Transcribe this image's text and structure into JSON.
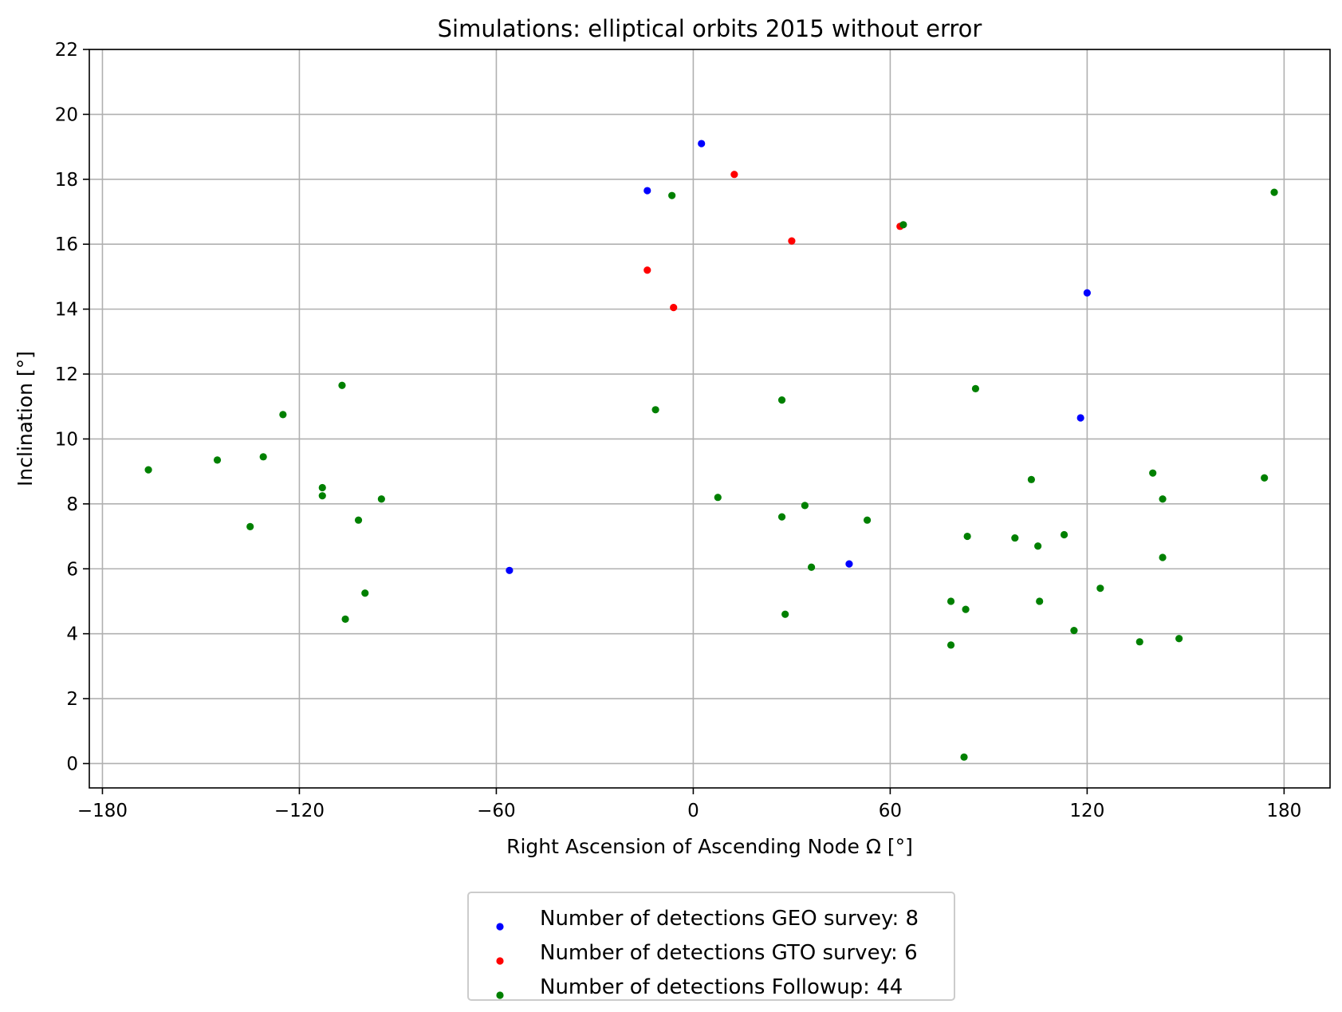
{
  "chart_data": {
    "type": "scatter",
    "title": "Simulations: elliptical orbits 2015 without error",
    "xlabel": "Right Ascension of Ascending Node Ω [°]",
    "ylabel": "Inclination [°]",
    "xlim": [
      -184,
      194
    ],
    "ylim": [
      -0.75,
      22
    ],
    "xticks": [
      -180,
      -120,
      -60,
      0,
      60,
      120,
      180
    ],
    "xtick_labels": [
      "−180",
      "−120",
      "−60",
      "0",
      "60",
      "120",
      "180"
    ],
    "yticks": [
      0,
      2,
      4,
      6,
      8,
      10,
      12,
      14,
      16,
      18,
      20,
      22
    ],
    "ytick_labels": [
      "0",
      "2",
      "4",
      "6",
      "8",
      "10",
      "12",
      "14",
      "16",
      "18",
      "20",
      "22"
    ],
    "grid": true,
    "legend_position": "below",
    "series": [
      {
        "name": "Number of detections GEO survey: 8",
        "color": "#0000ff",
        "points": [
          [
            -56,
            5.95
          ],
          [
            -14,
            17.65
          ],
          [
            2.5,
            19.1
          ],
          [
            47.5,
            6.15
          ],
          [
            118,
            10.65
          ],
          [
            120,
            14.5
          ]
        ]
      },
      {
        "name": "Number of detections GTO survey: 6",
        "color": "#ff0000",
        "points": [
          [
            -14,
            15.2
          ],
          [
            -6,
            14.05
          ],
          [
            12.5,
            18.15
          ],
          [
            30,
            16.1
          ],
          [
            63,
            16.55
          ]
        ]
      },
      {
        "name": "Number of detections Followup: 44",
        "color": "#008000",
        "points": [
          [
            -166,
            9.05
          ],
          [
            -145,
            9.35
          ],
          [
            -135,
            7.3
          ],
          [
            -131,
            9.45
          ],
          [
            -125,
            10.75
          ],
          [
            -113,
            8.5
          ],
          [
            -113,
            8.25
          ],
          [
            -107,
            11.65
          ],
          [
            -106,
            4.45
          ],
          [
            -102,
            7.5
          ],
          [
            -100,
            5.25
          ],
          [
            -95,
            8.15
          ],
          [
            -6.5,
            17.5
          ],
          [
            -11.5,
            10.9
          ],
          [
            7.5,
            8.2
          ],
          [
            27,
            11.2
          ],
          [
            27,
            7.6
          ],
          [
            28,
            4.6
          ],
          [
            34,
            7.95
          ],
          [
            36,
            6.05
          ],
          [
            53,
            7.5
          ],
          [
            64,
            16.6
          ],
          [
            78.5,
            5.0
          ],
          [
            78.5,
            3.65
          ],
          [
            82.5,
            0.2
          ],
          [
            83,
            4.75
          ],
          [
            83.5,
            7.0
          ],
          [
            86,
            11.55
          ],
          [
            98,
            6.95
          ],
          [
            103,
            8.75
          ],
          [
            105,
            6.7
          ],
          [
            105.5,
            5.0
          ],
          [
            113,
            7.05
          ],
          [
            116,
            4.1
          ],
          [
            124,
            5.4
          ],
          [
            136,
            3.75
          ],
          [
            140,
            8.95
          ],
          [
            143,
            8.15
          ],
          [
            143,
            6.35
          ],
          [
            148,
            3.85
          ],
          [
            174,
            8.8
          ],
          [
            177,
            17.6
          ]
        ]
      }
    ]
  }
}
